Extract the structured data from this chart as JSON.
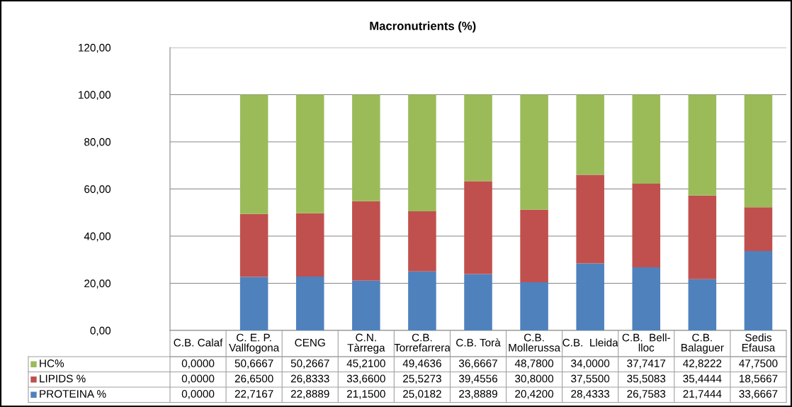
{
  "chart_data": {
    "type": "bar",
    "title": "Macronutrients (%)",
    "stacked": true,
    "grid": "y",
    "legend": "bottom",
    "categories": [
      "C.B. Calaf",
      "C. E. P.\nVallfogona",
      "CENG",
      "C.N.\nTàrrega",
      "C.B.\nTorrefarrera",
      "C.B. Torà",
      "C.B.\nMollerussa",
      "C.B.  Lleida",
      "C.B.  Bell-\nlloc",
      "C.B.\nBalaguer",
      "Sedis\nEfausa"
    ],
    "ylim": [
      0,
      120
    ],
    "yticks": [
      {
        "value": 0,
        "label": "0,00"
      },
      {
        "value": 20,
        "label": "20,00"
      },
      {
        "value": 40,
        "label": "40,00"
      },
      {
        "value": 60,
        "label": "60,00"
      },
      {
        "value": 80,
        "label": "80,00"
      },
      {
        "value": 100,
        "label": "100,00"
      },
      {
        "value": 120,
        "label": "120,00"
      }
    ],
    "series": [
      {
        "name": "PROTEINA %",
        "color": "#4f81bd",
        "values": [
          0.0,
          22.7167,
          22.8889,
          21.15,
          25.0182,
          23.8889,
          20.42,
          28.4333,
          26.7583,
          21.7444,
          33.6667
        ],
        "value_labels": [
          "0,0000",
          "22,7167",
          "22,8889",
          "21,1500",
          "25,0182",
          "23,8889",
          "20,4200",
          "28,4333",
          "26,7583",
          "21,7444",
          "33,6667"
        ]
      },
      {
        "name": "LIPIDS %",
        "color": "#c0504d",
        "values": [
          0.0,
          26.65,
          26.8333,
          33.66,
          25.5273,
          39.4556,
          30.8,
          37.55,
          35.5083,
          35.4444,
          18.5667
        ],
        "value_labels": [
          "0,0000",
          "26,6500",
          "26,8333",
          "33,6600",
          "25,5273",
          "39,4556",
          "30,8000",
          "37,5500",
          "35,5083",
          "35,4444",
          "18,5667"
        ]
      },
      {
        "name": "HC%",
        "color": "#9bbb59",
        "values": [
          0.0,
          50.6667,
          50.2667,
          45.21,
          49.4636,
          36.6667,
          48.78,
          34.0,
          37.7417,
          42.8222,
          47.75
        ],
        "value_labels": [
          "0,0000",
          "50,6667",
          "50,2667",
          "45,2100",
          "49,4636",
          "36,6667",
          "48,7800",
          "34,0000",
          "37,7417",
          "42,8222",
          "47,7500"
        ]
      }
    ]
  }
}
